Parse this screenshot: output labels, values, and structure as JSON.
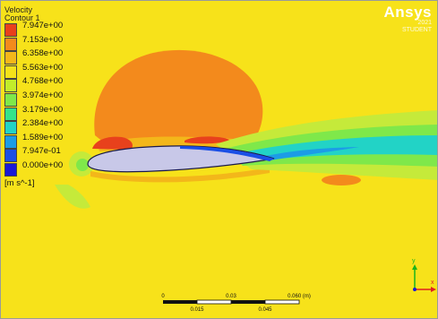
{
  "legend": {
    "title_line1": "Velocity",
    "title_line2": "Contour 1",
    "levels": [
      {
        "label": "7.947e+00",
        "color": "#e8411c"
      },
      {
        "label": "7.153e+00",
        "color": "#f38a1c"
      },
      {
        "label": "6.358e+00",
        "color": "#f3b71a"
      },
      {
        "label": "5.563e+00",
        "color": "#f5e21a"
      },
      {
        "label": "4.768e+00",
        "color": "#c2ec2a"
      },
      {
        "label": "3.974e+00",
        "color": "#7fe84a"
      },
      {
        "label": "3.179e+00",
        "color": "#34e38a"
      },
      {
        "label": "2.384e+00",
        "color": "#22d3c6"
      },
      {
        "label": "1.589e+00",
        "color": "#1c9ce6"
      },
      {
        "label": "7.947e-01",
        "color": "#1a4fe6"
      },
      {
        "label": "0.000e+00",
        "color": "#1a1ad6"
      }
    ],
    "units": "[m s^-1]"
  },
  "brand": {
    "name": "Ansys",
    "line2": "2021",
    "line3": "STUDENT"
  },
  "scale_bar": {
    "top_labels": [
      "0",
      "0.03",
      "0.060 (m)"
    ],
    "bottom_labels": [
      "0.015",
      "0.045"
    ]
  },
  "axes": {
    "y_label": "y",
    "x_label": "x"
  },
  "colors": {
    "background": "#f7e21a",
    "stagnation_cool": "#c5ea3a",
    "high_velocity": "#f38a1c",
    "peak_velocity": "#e8411c",
    "wake_green": "#7fe84a",
    "wake_cyan": "#22d3c6",
    "airfoil_fill": "#c8c8e8"
  }
}
